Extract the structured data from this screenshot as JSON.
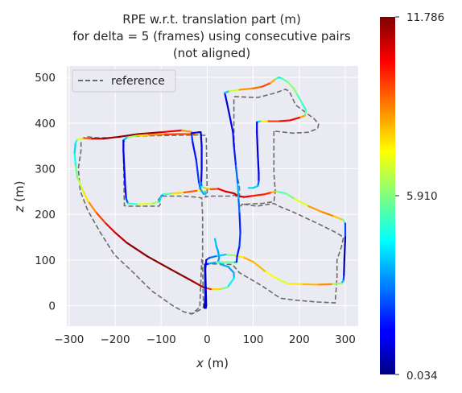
{
  "chart_data": {
    "type": "line",
    "title_lines": [
      "RPE w.r.t. translation part (m)",
      "for delta = 5 (frames) using consecutive pairs",
      "(not aligned)"
    ],
    "xlabel": "x (m)",
    "ylabel": "z (m)",
    "xlim": [
      -305,
      328
    ],
    "ylim": [
      -45,
      525
    ],
    "xticks": [
      {
        "value": -300,
        "label": "−300"
      },
      {
        "value": -200,
        "label": "−200"
      },
      {
        "value": -100,
        "label": "−100"
      },
      {
        "value": 0,
        "label": "0"
      },
      {
        "value": 100,
        "label": "100"
      },
      {
        "value": 200,
        "label": "200"
      },
      {
        "value": 300,
        "label": "300"
      }
    ],
    "yticks": [
      {
        "value": 0,
        "label": "0"
      },
      {
        "value": 100,
        "label": "100"
      },
      {
        "value": 200,
        "label": "200"
      },
      {
        "value": 300,
        "label": "300"
      },
      {
        "value": 400,
        "label": "400"
      },
      {
        "value": 500,
        "label": "500"
      }
    ],
    "grid": true,
    "legend": {
      "position": "top-left",
      "entries": [
        "reference"
      ]
    },
    "colorbar": {
      "colormap": "jet",
      "min": 0.034,
      "mid": 5.91,
      "max": 11.786,
      "tick_labels": [
        "11.786",
        "5.910",
        "0.034"
      ]
    },
    "series": [
      {
        "name": "reference",
        "style": "dashed",
        "color": "#6b6b6b",
        "points": [
          [
            -38,
            -18
          ],
          [
            -28,
            -16
          ],
          [
            -14,
            -8
          ],
          [
            -8,
            -3
          ],
          [
            -10,
            90
          ],
          [
            -10,
            200
          ],
          [
            -12,
            236
          ],
          [
            -28,
            238
          ],
          [
            -50,
            240
          ],
          [
            -100,
            240
          ],
          [
            -106,
            232
          ],
          [
            -102,
            222
          ],
          [
            -105,
            218
          ],
          [
            -172,
            218
          ],
          [
            -180,
            219
          ],
          [
            -182,
            340
          ],
          [
            -180,
            365
          ],
          [
            -166,
            370
          ],
          [
            -140,
            372
          ],
          [
            -20,
            374
          ],
          [
            -5,
            373
          ],
          [
            -2,
            370
          ],
          [
            0,
            248
          ],
          [
            -4,
            238
          ],
          [
            10,
            240
          ],
          [
            50,
            240
          ],
          [
            60,
            242
          ],
          [
            68,
            236
          ],
          [
            70,
            238
          ],
          [
            70,
            260
          ],
          [
            62,
            300
          ],
          [
            58,
            370
          ],
          [
            58,
            420
          ],
          [
            58,
            455
          ],
          [
            60,
            458
          ],
          [
            110,
            456
          ],
          [
            148,
            466
          ],
          [
            170,
            474
          ],
          [
            178,
            470
          ],
          [
            182,
            462
          ],
          [
            192,
            440
          ],
          [
            218,
            420
          ],
          [
            232,
            410
          ],
          [
            242,
            398
          ],
          [
            240,
            388
          ],
          [
            220,
            380
          ],
          [
            186,
            378
          ],
          [
            148,
            382
          ],
          [
            145,
            384
          ],
          [
            145,
            350
          ],
          [
            145,
            290
          ],
          [
            148,
            250
          ],
          [
            145,
            228
          ],
          [
            120,
            224
          ],
          [
            76,
            222
          ],
          [
            72,
            218
          ],
          [
            80,
            222
          ],
          [
            108,
            218
          ],
          [
            145,
            224
          ],
          [
            160,
            216
          ],
          [
            185,
            206
          ],
          [
            240,
            180
          ],
          [
            280,
            160
          ],
          [
            296,
            150
          ],
          [
            292,
            130
          ],
          [
            282,
            100
          ],
          [
            282,
            62
          ],
          [
            278,
            6
          ],
          [
            240,
            8
          ],
          [
            190,
            12
          ],
          [
            160,
            16
          ],
          [
            150,
            22
          ],
          [
            130,
            36
          ],
          [
            108,
            50
          ],
          [
            70,
            72
          ],
          [
            55,
            90
          ],
          [
            -2,
            92
          ],
          [
            -12,
            100
          ],
          [
            -16,
            -3
          ],
          [
            -32,
            -18
          ],
          [
            -50,
            -14
          ],
          [
            -75,
            0
          ],
          [
            -120,
            32
          ],
          [
            -160,
            72
          ],
          [
            -202,
            112
          ],
          [
            -232,
            160
          ],
          [
            -260,
            210
          ],
          [
            -276,
            252
          ],
          [
            -280,
            300
          ],
          [
            -274,
            340
          ],
          [
            -274,
            365
          ],
          [
            -262,
            370
          ],
          [
            -240,
            368
          ],
          [
            -210,
            368
          ]
        ]
      },
      {
        "name": "",
        "style": "solid",
        "color_encoding": "RPE (m), jet colormap",
        "points": [
          [
            17,
            146,
            3.8
          ],
          [
            20,
            130,
            3.6
          ],
          [
            24,
            118,
            3.4
          ],
          [
            26,
            105,
            3.3
          ],
          [
            24,
            98,
            3.2
          ],
          [
            30,
            90,
            3.6
          ],
          [
            46,
            85,
            3.4
          ],
          [
            58,
            72,
            3.3
          ],
          [
            58,
            60,
            3.8
          ],
          [
            44,
            40,
            4.8
          ],
          [
            28,
            36,
            7.0
          ],
          [
            8,
            36,
            8.6
          ],
          [
            -8,
            40,
            11.0
          ],
          [
            -40,
            58,
            11.6
          ],
          [
            -80,
            80,
            11.7
          ],
          [
            -130,
            108,
            11.7
          ],
          [
            -175,
            138,
            11.6
          ],
          [
            -200,
            160,
            10.8
          ],
          [
            -222,
            182,
            10.0
          ],
          [
            -242,
            205,
            9.2
          ],
          [
            -258,
            228,
            8.2
          ],
          [
            -270,
            252,
            7.2
          ],
          [
            -282,
            280,
            6.2
          ],
          [
            -286,
            308,
            5.2
          ],
          [
            -288,
            335,
            4.2
          ],
          [
            -286,
            357,
            3.8
          ],
          [
            -282,
            364,
            5.6
          ],
          [
            -268,
            367,
            8.4
          ],
          [
            -250,
            366,
            10.2
          ],
          [
            -225,
            366,
            11.2
          ],
          [
            -190,
            370,
            11.6
          ],
          [
            -150,
            376,
            11.7
          ],
          [
            -100,
            380,
            11.2
          ],
          [
            -55,
            384,
            9.8
          ],
          [
            -30,
            380,
            7.5
          ],
          [
            -20,
            378,
            6.8
          ],
          [
            -28,
            376,
            8.8
          ],
          [
            -60,
            376,
            10.2
          ],
          [
            -95,
            375,
            9.0
          ],
          [
            -130,
            374,
            8.5
          ],
          [
            -155,
            372,
            6.8
          ],
          [
            -175,
            368,
            5.6
          ],
          [
            -182,
            362,
            1.8
          ],
          [
            -182,
            340,
            1.2
          ],
          [
            -180,
            300,
            1.4
          ],
          [
            -178,
            260,
            1.6
          ],
          [
            -176,
            234,
            1.6
          ],
          [
            -172,
            224,
            3.2
          ],
          [
            -150,
            222,
            6.8
          ],
          [
            -118,
            224,
            7.3
          ],
          [
            -104,
            228,
            5.0
          ],
          [
            -100,
            240,
            3.0
          ],
          [
            -95,
            244,
            3.8
          ],
          [
            -75,
            246,
            7.0
          ],
          [
            -50,
            248,
            8.6
          ],
          [
            -20,
            252,
            10.0
          ],
          [
            -5,
            250,
            4.4
          ],
          [
            -3,
            245,
            3.8
          ],
          [
            -8,
            245,
            3.6
          ],
          [
            -15,
            256,
            3.2
          ],
          [
            -18,
            270,
            2.6
          ],
          [
            -24,
            320,
            1.6
          ],
          [
            -32,
            360,
            1.8
          ],
          [
            -34,
            378,
            2.4
          ],
          [
            -18,
            380,
            1.0
          ],
          [
            -14,
            380,
            0.8
          ],
          [
            -12,
            350,
            0.9
          ],
          [
            -12,
            300,
            1.1
          ],
          [
            -13,
            270,
            1.6
          ],
          [
            -12,
            260,
            3.9
          ],
          [
            -6,
            258,
            7.0
          ],
          [
            8,
            255,
            9.0
          ],
          [
            24,
            256,
            10.0
          ],
          [
            40,
            250,
            10.8
          ],
          [
            58,
            246,
            11.0
          ],
          [
            68,
            240,
            11.0
          ],
          [
            80,
            238,
            10.8
          ],
          [
            95,
            240,
            10.2
          ],
          [
            110,
            242,
            9.8
          ],
          [
            125,
            244,
            10.0
          ],
          [
            140,
            248,
            9.8
          ],
          [
            150,
            250,
            6.8
          ],
          [
            160,
            248,
            4.8
          ],
          [
            170,
            246,
            5.5
          ],
          [
            190,
            234,
            6.0
          ],
          [
            220,
            218,
            8.0
          ],
          [
            250,
            205,
            9.0
          ],
          [
            275,
            196,
            8.6
          ],
          [
            295,
            188,
            7.4
          ],
          [
            300,
            180,
            3.8
          ],
          [
            300,
            150,
            0.8
          ],
          [
            298,
            100,
            0.6
          ],
          [
            297,
            65,
            0.6
          ],
          [
            296,
            55,
            3.8
          ],
          [
            292,
            49,
            3.4
          ],
          [
            270,
            47,
            9.0
          ],
          [
            240,
            46,
            8.4
          ],
          [
            205,
            47,
            8.0
          ],
          [
            175,
            48,
            7.2
          ],
          [
            150,
            60,
            6.8
          ],
          [
            125,
            76,
            7.8
          ],
          [
            100,
            96,
            8.6
          ],
          [
            78,
            106,
            8.0
          ],
          [
            60,
            110,
            7.2
          ],
          [
            40,
            112,
            4.8
          ],
          [
            18,
            108,
            2.8
          ],
          [
            5,
            105,
            3.0
          ],
          [
            -2,
            100,
            1.5
          ],
          [
            -4,
            80,
            1.3
          ],
          [
            -3,
            40,
            0.8
          ],
          [
            -2,
            0,
            0.6
          ],
          [
            -3,
            -5,
            0.4
          ],
          [
            -6,
            -5,
            0.9
          ],
          [
            -4,
            20,
            0.8
          ],
          [
            -5,
            90,
            0.8
          ],
          [
            4,
            92,
            2.3
          ],
          [
            20,
            95,
            4.6
          ],
          [
            42,
            95,
            6.4
          ],
          [
            60,
            95,
            4.8
          ],
          [
            64,
            96,
            2.2
          ],
          [
            65,
            108,
            1.6
          ],
          [
            70,
            130,
            2.0
          ],
          [
            72,
            160,
            2.2
          ],
          [
            70,
            205,
            1.6
          ],
          [
            68,
            236,
            3.8
          ],
          [
            66,
            270,
            3.4
          ],
          [
            62,
            310,
            2.0
          ],
          [
            58,
            350,
            1.8
          ],
          [
            56,
            380,
            1.6
          ],
          [
            48,
            420,
            1.0
          ],
          [
            40,
            458,
            0.9
          ],
          [
            38,
            466,
            2.2
          ],
          [
            48,
            470,
            5.3
          ],
          [
            70,
            473,
            8.4
          ],
          [
            100,
            476,
            8.8
          ],
          [
            120,
            480,
            9.4
          ],
          [
            138,
            488,
            9.6
          ],
          [
            148,
            496,
            7.2
          ],
          [
            155,
            500,
            3.6
          ],
          [
            162,
            498,
            5.2
          ],
          [
            175,
            490,
            5.8
          ],
          [
            188,
            476,
            6.3
          ],
          [
            196,
            462,
            5.6
          ],
          [
            208,
            440,
            5.1
          ],
          [
            215,
            428,
            4.6
          ],
          [
            212,
            416,
            6.8
          ],
          [
            200,
            412,
            10.2
          ],
          [
            180,
            406,
            10.5
          ],
          [
            155,
            404,
            10.0
          ],
          [
            130,
            404,
            9.2
          ],
          [
            115,
            404,
            6.0
          ],
          [
            108,
            402,
            2.0
          ],
          [
            108,
            380,
            1.0
          ],
          [
            110,
            330,
            1.2
          ],
          [
            112,
            290,
            1.0
          ],
          [
            112,
            272,
            1.8
          ],
          [
            110,
            262,
            3.5
          ],
          [
            100,
            258,
            4.2
          ],
          [
            90,
            258,
            3.8
          ]
        ]
      }
    ]
  }
}
